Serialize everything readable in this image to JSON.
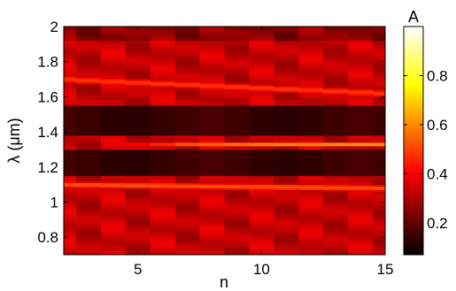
{
  "chart_data": {
    "type": "heatmap",
    "xlabel": "n",
    "ylabel": "λ (μm)",
    "colorbar_label": "A",
    "xlim": [
      2,
      15
    ],
    "ylim": [
      0.7,
      2.0
    ],
    "x_ticks": [
      5,
      10,
      15
    ],
    "y_ticks": [
      0.8,
      1.0,
      1.2,
      1.4,
      1.6,
      1.8,
      2.0
    ],
    "x_tick_labels": [
      "5",
      "10",
      "15"
    ],
    "y_tick_labels": [
      "0.8",
      "1",
      "1.2",
      "1.4",
      "1.6",
      "1.8",
      "2"
    ],
    "n_values": [
      2,
      3,
      4,
      5,
      6,
      7,
      8,
      9,
      10,
      11,
      12,
      13,
      14,
      15
    ],
    "colorbar_range": [
      0.07,
      1.0
    ],
    "colorbar_ticks": [
      0.2,
      0.4,
      0.6,
      0.8
    ],
    "colorbar_tick_labels": [
      "0.2",
      "0.4",
      "0.6",
      "0.8"
    ],
    "colormap": "hot",
    "features": [
      {
        "name": "background",
        "absorption": 0.28
      },
      {
        "name": "dark band (upper)",
        "lambda_range": [
          1.38,
          1.55
        ],
        "absorption": 0.08
      },
      {
        "name": "dark band (lower)",
        "lambda_range": [
          1.15,
          1.3
        ],
        "absorption": 0.08
      },
      {
        "name": "resonance line",
        "lambda": 1.33,
        "absorption_by_n": [
          0.25,
          0.3,
          0.55,
          0.6,
          0.7,
          0.8,
          0.85,
          0.88,
          0.9,
          0.92,
          0.93,
          0.94,
          0.95,
          0.95
        ]
      },
      {
        "name": "upper side band",
        "lambda_start": 1.7,
        "lambda_end": 1.62,
        "absorption": 0.45
      },
      {
        "name": "lower side band",
        "lambda_start": 1.1,
        "lambda_end": 1.08,
        "absorption": 0.5
      }
    ]
  }
}
